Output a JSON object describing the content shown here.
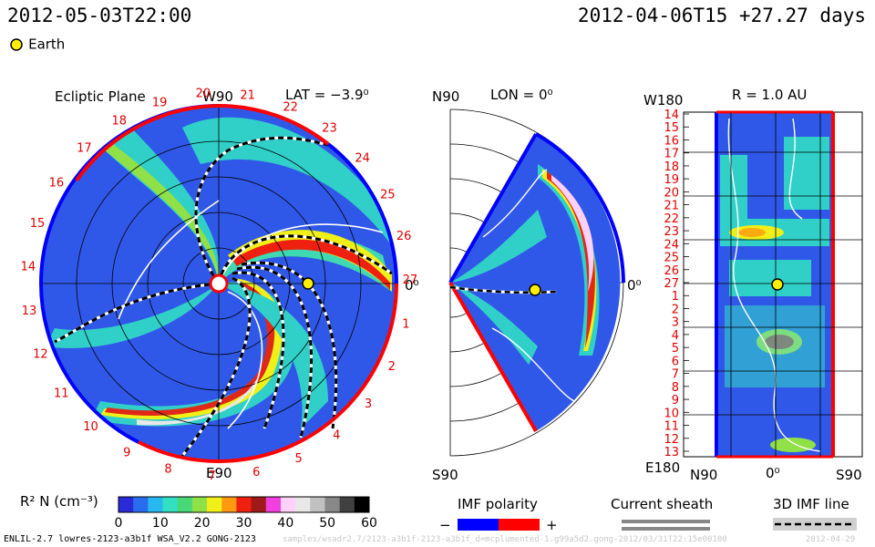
{
  "header": {
    "left_time": "2012-05-03T22:00",
    "right_time": "2012-04-06T15 +27.27 days"
  },
  "legend": {
    "earth_label": "Earth",
    "earth_color": "#ffee00"
  },
  "panels": {
    "ecliptic": {
      "title": "Ecliptic Plane",
      "top_label": "W90",
      "lat_label": "LAT = −3.9⁰",
      "right_label": "0⁰",
      "bottom_label": "E90",
      "carrington_ticks": [
        "1",
        "2",
        "3",
        "4",
        "5",
        "6",
        "7",
        "8",
        "9",
        "10",
        "11",
        "12",
        "13",
        "14",
        "15",
        "16",
        "17",
        "18",
        "19",
        "20",
        "21",
        "22",
        "23",
        "24",
        "25",
        "26",
        "27"
      ]
    },
    "meridional": {
      "top_label": "N90",
      "lon_label": "LON = 0⁰",
      "right_label": "0⁰",
      "bottom_label": "S90"
    },
    "radial": {
      "top_left_label": "W180",
      "r_label": "R = 1.0 AU",
      "bottom_left_label": "E180",
      "x_left": "N90",
      "x_center": "0⁰",
      "x_right": "S90",
      "y_ticks": [
        "14",
        "15",
        "16",
        "17",
        "18",
        "19",
        "20",
        "21",
        "22",
        "23",
        "24",
        "25",
        "26",
        "27",
        "1",
        "2",
        "3",
        "4",
        "5",
        "6",
        "7",
        "8",
        "9",
        "10",
        "11",
        "12",
        "13"
      ]
    }
  },
  "chart_data": {
    "type": "heatmap",
    "quantity": "R² N",
    "colorbar": {
      "label": "R² N (cm⁻³)",
      "ticks": [
        0,
        10,
        20,
        30,
        40,
        50,
        60
      ],
      "range": [
        0,
        60
      ],
      "colors": [
        "#2a2ad8",
        "#2a6cf0",
        "#28b8f0",
        "#30e0c0",
        "#48d878",
        "#90e048",
        "#f0f018",
        "#ff9a10",
        "#f02010",
        "#a01818",
        "#f040e0",
        "#ffd0f8",
        "#e8e8e8",
        "#c0c0c0",
        "#888888",
        "#404040",
        "#000000"
      ]
    }
  },
  "legends": {
    "imf": {
      "title": "IMF polarity",
      "minus": "−",
      "plus": "+",
      "minus_color": "#0000ff",
      "plus_color": "#ff0000"
    },
    "sheath": {
      "title": "Current sheath"
    },
    "imf_line": {
      "title": "3D IMF line"
    }
  },
  "footer": {
    "left": "ENLIL-2.7 lowres-2123-a3b1f WSA_V2.2 GONG-2123",
    "middle": "samples/wsadr2.7/2123-a3b1f-2123-a3b1f_d=mcplumented-1.g99a5d2.gong-2012/03/31T22:15e00100",
    "right": "2012-04-29"
  }
}
